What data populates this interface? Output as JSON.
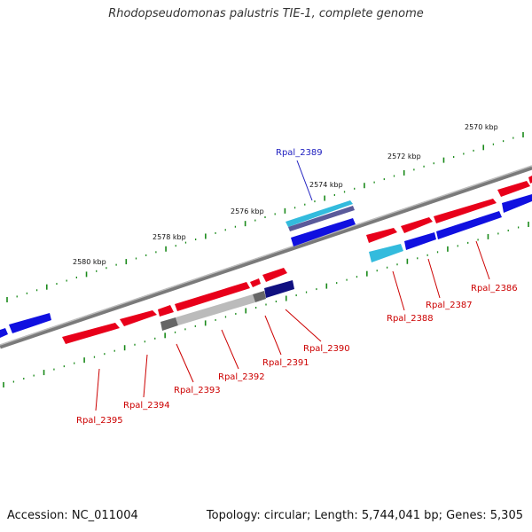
{
  "title": "Rhodopseudomonas palustris TIE-1, complete genome",
  "accession": "Accession: NC_011004",
  "topology": "Topology: circular; Length: 5,744,041 bp; Genes: 5,305",
  "colors": {
    "forward_gene": "#e8001a",
    "reverse_gene": "#1010e0",
    "backbone": "#808080",
    "tick": "#1a8a1a",
    "gene_label_red": "#cc0000",
    "gene_label_blue": "#2020c0",
    "highlight_cyan": "#33bbdd",
    "highlight_navy": "#101080",
    "highlight_gray": "#aaaaaa"
  },
  "scale_labels": [
    "2570 kbp",
    "2572 kbp",
    "2574 kbp",
    "2576 kbp",
    "2578 kbp",
    "2580 kbp"
  ],
  "gene_labels": [
    {
      "name": "Rpal_2386",
      "strand": "forward"
    },
    {
      "name": "Rpal_2387",
      "strand": "reverse"
    },
    {
      "name": "Rpal_2388",
      "strand": "reverse"
    },
    {
      "name": "Rpal_2389",
      "strand": "forward"
    },
    {
      "name": "Rpal_2390",
      "strand": "reverse"
    },
    {
      "name": "Rpal_2391",
      "strand": "reverse"
    },
    {
      "name": "Rpal_2392",
      "strand": "reverse"
    },
    {
      "name": "Rpal_2393",
      "strand": "reverse"
    },
    {
      "name": "Rpal_2394",
      "strand": "forward"
    },
    {
      "name": "Rpal_2395",
      "strand": "forward"
    }
  ]
}
